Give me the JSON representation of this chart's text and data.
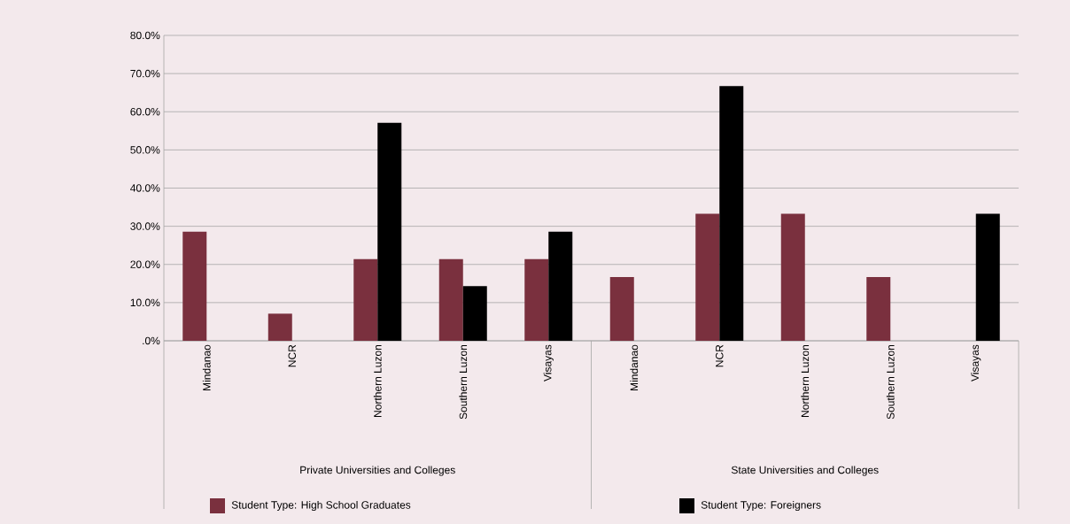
{
  "chart_data": {
    "type": "bar",
    "categories": [
      "Mindanao",
      "NCR",
      "Northern Luzon",
      "Southern Luzon",
      "Visayas",
      "Mindanao",
      "NCR",
      "Northern Luzon",
      "Southern Luzon",
      "Visayas"
    ],
    "series": [
      {
        "name": "Student Type: High School Graduates",
        "color": "#7a303e",
        "values": [
          28.6,
          7.1,
          21.4,
          21.4,
          21.4,
          16.7,
          33.3,
          33.3,
          16.7,
          null
        ]
      },
      {
        "name": "Student Type: Foreigners",
        "color": "#000000",
        "values": [
          null,
          null,
          57.1,
          14.3,
          28.6,
          null,
          66.7,
          null,
          null,
          33.3
        ]
      }
    ],
    "annotations": [
      "Private Universities and Colleges",
      "State Universities and Colleges"
    ],
    "ylim": [
      0,
      80
    ],
    "yticks": [
      {
        "value": 0,
        "label": ".0%"
      },
      {
        "value": 10,
        "label": "10.0%"
      },
      {
        "value": 20,
        "label": "20.0%"
      },
      {
        "value": 30,
        "label": "30.0%"
      },
      {
        "value": 40,
        "label": "40.0%"
      },
      {
        "value": 50,
        "label": "50.0%"
      },
      {
        "value": 60,
        "label": "60.0%"
      },
      {
        "value": 70,
        "label": "70.0%"
      },
      {
        "value": 80,
        "label": "80.0%"
      }
    ],
    "grid": "y",
    "legend": "bottom"
  }
}
